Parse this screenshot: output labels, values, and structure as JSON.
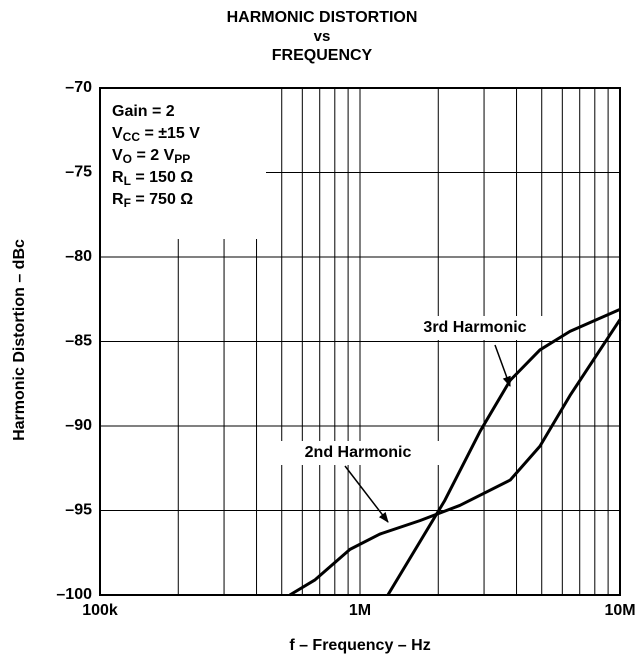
{
  "chart_data": {
    "type": "line",
    "title": [
      "HARMONIC DISTORTION",
      "vs",
      "FREQUENCY"
    ],
    "xlabel": "f – Frequency – Hz",
    "ylabel": "Harmonic Distortion – dBc",
    "xscale": "log",
    "xlim": [
      100000,
      10000000
    ],
    "xticks": [
      {
        "value": 100000,
        "label": "100k"
      },
      {
        "value": 1000000,
        "label": "1M"
      },
      {
        "value": 10000000,
        "label": "10M"
      }
    ],
    "xgrid_minor": [
      200000,
      300000,
      400000,
      500000,
      600000,
      700000,
      800000,
      900000,
      2000000,
      3000000,
      4000000,
      5000000,
      6000000,
      7000000,
      8000000,
      9000000
    ],
    "ylim": [
      -100,
      -70
    ],
    "yticks": [
      {
        "value": -100,
        "label": "–100"
      },
      {
        "value": -95,
        "label": "–95"
      },
      {
        "value": -90,
        "label": "–90"
      },
      {
        "value": -85,
        "label": "–85"
      },
      {
        "value": -80,
        "label": "–80"
      },
      {
        "value": -75,
        "label": "–75"
      },
      {
        "value": -70,
        "label": "–70"
      }
    ],
    "grid": true,
    "conditions": [
      [
        "Gain = 2"
      ],
      [
        "V",
        "CC",
        " = ±15 V"
      ],
      [
        "V",
        "O",
        " = 2 V",
        "PP"
      ],
      [
        "R",
        "L",
        " = 150 Ω"
      ],
      [
        "R",
        "F",
        " = 750 Ω"
      ]
    ],
    "series": [
      {
        "name": "2nd Harmonic",
        "color": "#000",
        "x": [
          537000,
          672000,
          915000,
          1190000,
          1700000,
          2420000,
          3780000,
          4920000,
          6420000,
          10000000
        ],
        "values": [
          -100,
          -99.1,
          -97.3,
          -96.4,
          -95.6,
          -94.7,
          -93.2,
          -91.2,
          -88.2,
          -83.7
        ]
      },
      {
        "name": "3rd Harmonic",
        "color": "#000",
        "x": [
          1280000,
          2120000,
          2900000,
          3780000,
          4920000,
          6420000,
          10000000
        ],
        "values": [
          -100,
          -94.4,
          -90.3,
          -87.3,
          -85.5,
          -84.4,
          -83.1
        ]
      }
    ]
  }
}
